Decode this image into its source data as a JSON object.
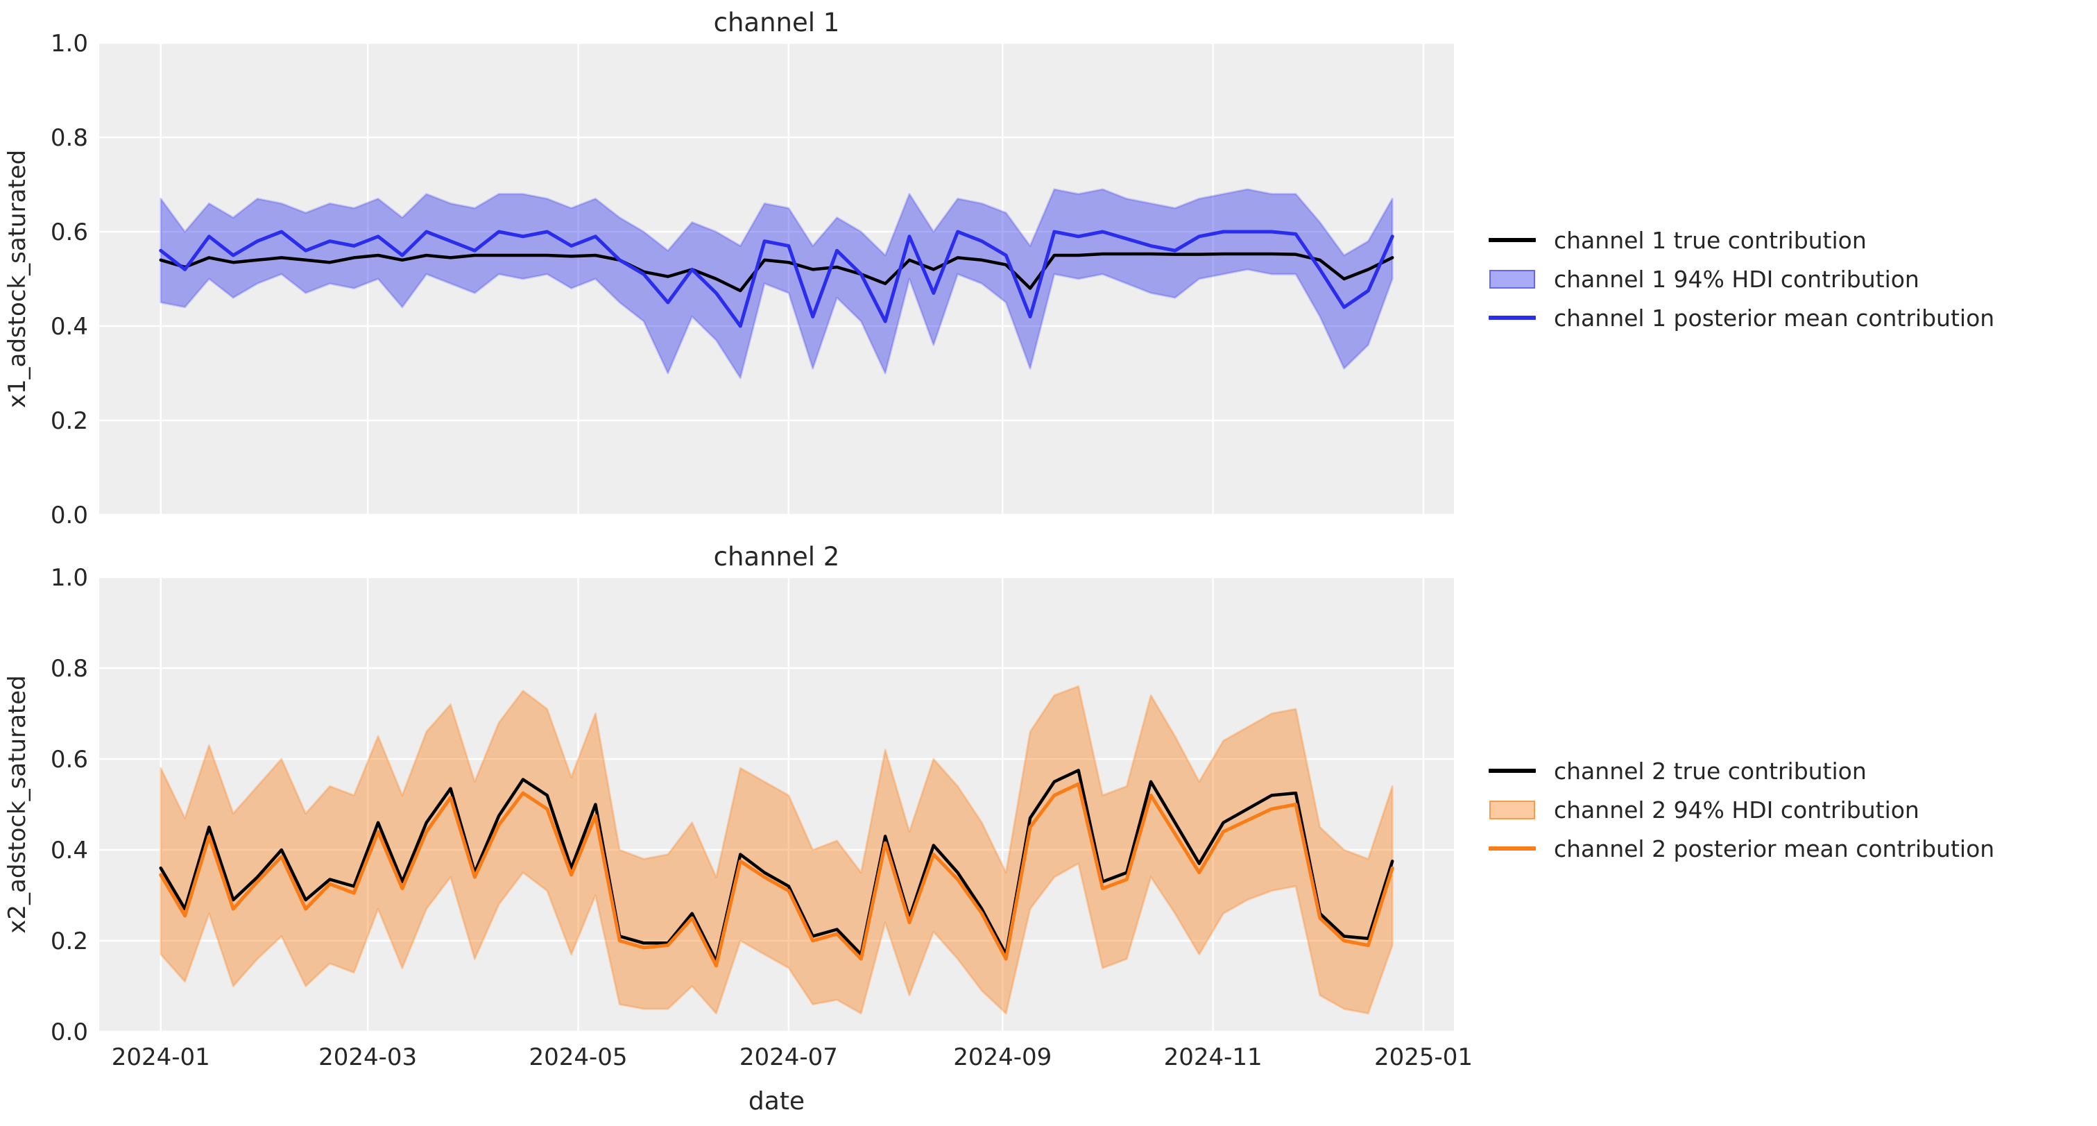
{
  "figure": {
    "background": "#ffffff",
    "plot_background": "#eeeeee",
    "grid_color": "#ffffff",
    "text_color": "#262626",
    "true_line_color": "#000000"
  },
  "chart_data": [
    {
      "type": "line",
      "title": "channel 1",
      "ylabel": "x1_adstock_saturated",
      "ylim": [
        0.0,
        1.0
      ],
      "yticks": [
        "0.0",
        "0.2",
        "0.4",
        "0.6",
        "0.8",
        "1.0"
      ],
      "xticks": [
        {
          "label": "2024-01",
          "day": 0
        },
        {
          "label": "2024-03",
          "day": 60
        },
        {
          "label": "2024-05",
          "day": 121
        },
        {
          "label": "2024-07",
          "day": 182
        },
        {
          "label": "2024-09",
          "day": 244
        },
        {
          "label": "2024-11",
          "day": 305
        },
        {
          "label": "2025-01",
          "day": 366
        }
      ],
      "x_start_date": "2024-01-01",
      "x_interval_days": 7,
      "x_days": [
        0,
        7,
        14,
        21,
        28,
        35,
        42,
        49,
        56,
        63,
        70,
        77,
        84,
        91,
        98,
        105,
        112,
        119,
        126,
        133,
        140,
        147,
        154,
        161,
        168,
        175,
        182,
        189,
        196,
        203,
        210,
        217,
        224,
        231,
        238,
        245,
        252,
        259,
        266,
        273,
        280,
        287,
        294,
        301,
        308,
        315,
        322,
        329,
        336,
        343,
        350,
        357
      ],
      "series": [
        {
          "name": "channel 1 true contribution",
          "color": "#000000",
          "values": [
            0.54,
            0.525,
            0.545,
            0.535,
            0.54,
            0.545,
            0.54,
            0.535,
            0.545,
            0.55,
            0.54,
            0.55,
            0.545,
            0.55,
            0.55,
            0.55,
            0.55,
            0.548,
            0.55,
            0.54,
            0.515,
            0.505,
            0.52,
            0.5,
            0.475,
            0.54,
            0.535,
            0.52,
            0.525,
            0.51,
            0.49,
            0.54,
            0.52,
            0.545,
            0.54,
            0.53,
            0.48,
            0.55,
            0.55,
            0.553,
            0.553,
            0.553,
            0.552,
            0.552,
            0.553,
            0.553,
            0.553,
            0.552,
            0.54,
            0.5,
            0.52,
            0.545
          ]
        },
        {
          "name": "channel 1 posterior mean contribution",
          "color": "#2a2eec",
          "values": [
            0.56,
            0.52,
            0.59,
            0.55,
            0.58,
            0.6,
            0.56,
            0.58,
            0.57,
            0.59,
            0.55,
            0.6,
            0.58,
            0.56,
            0.6,
            0.59,
            0.6,
            0.57,
            0.59,
            0.54,
            0.51,
            0.45,
            0.52,
            0.47,
            0.4,
            0.58,
            0.57,
            0.42,
            0.56,
            0.51,
            0.41,
            0.59,
            0.47,
            0.6,
            0.58,
            0.55,
            0.42,
            0.6,
            0.59,
            0.6,
            0.585,
            0.57,
            0.56,
            0.59,
            0.6,
            0.6,
            0.6,
            0.595,
            0.52,
            0.44,
            0.475,
            0.59
          ]
        }
      ],
      "hdi": {
        "name": "channel 1 94% HDI contribution",
        "fill": "rgba(42,46,236,0.4)",
        "edge": "rgba(42,46,236,0.22)",
        "lower": [
          0.45,
          0.44,
          0.5,
          0.46,
          0.49,
          0.51,
          0.47,
          0.49,
          0.48,
          0.5,
          0.44,
          0.51,
          0.49,
          0.47,
          0.51,
          0.5,
          0.51,
          0.48,
          0.5,
          0.45,
          0.41,
          0.3,
          0.42,
          0.37,
          0.29,
          0.49,
          0.47,
          0.31,
          0.46,
          0.41,
          0.3,
          0.5,
          0.36,
          0.51,
          0.49,
          0.45,
          0.31,
          0.51,
          0.5,
          0.51,
          0.49,
          0.47,
          0.46,
          0.5,
          0.51,
          0.52,
          0.51,
          0.51,
          0.42,
          0.31,
          0.36,
          0.5
        ],
        "upper": [
          0.67,
          0.6,
          0.66,
          0.63,
          0.67,
          0.66,
          0.64,
          0.66,
          0.65,
          0.67,
          0.63,
          0.68,
          0.66,
          0.65,
          0.68,
          0.68,
          0.67,
          0.65,
          0.67,
          0.63,
          0.6,
          0.56,
          0.62,
          0.6,
          0.57,
          0.66,
          0.65,
          0.57,
          0.63,
          0.6,
          0.55,
          0.68,
          0.6,
          0.67,
          0.66,
          0.64,
          0.57,
          0.69,
          0.68,
          0.69,
          0.67,
          0.66,
          0.65,
          0.67,
          0.68,
          0.69,
          0.68,
          0.68,
          0.62,
          0.55,
          0.58,
          0.67
        ]
      },
      "legend": [
        {
          "label": "channel 1 true contribution",
          "type": "line",
          "color": "#000000"
        },
        {
          "label": "channel 1 94% HDI contribution",
          "type": "band",
          "fill": "rgba(42,46,236,0.4)",
          "color": "rgba(42,46,236,0.55)"
        },
        {
          "label": "channel 1 posterior mean contribution",
          "type": "line",
          "color": "#2a2eec"
        }
      ]
    },
    {
      "type": "line",
      "title": "channel 2",
      "ylabel": "x2_adstock_saturated",
      "xlabel": "date",
      "ylim": [
        0.0,
        1.0
      ],
      "yticks": [
        "0.0",
        "0.2",
        "0.4",
        "0.6",
        "0.8",
        "1.0"
      ],
      "xticks": [
        {
          "label": "2024-01",
          "day": 0
        },
        {
          "label": "2024-03",
          "day": 60
        },
        {
          "label": "2024-05",
          "day": 121
        },
        {
          "label": "2024-07",
          "day": 182
        },
        {
          "label": "2024-09",
          "day": 244
        },
        {
          "label": "2024-11",
          "day": 305
        },
        {
          "label": "2025-01",
          "day": 366
        }
      ],
      "x_start_date": "2024-01-01",
      "x_interval_days": 7,
      "x_days": [
        0,
        7,
        14,
        21,
        28,
        35,
        42,
        49,
        56,
        63,
        70,
        77,
        84,
        91,
        98,
        105,
        112,
        119,
        126,
        133,
        140,
        147,
        154,
        161,
        168,
        175,
        182,
        189,
        196,
        203,
        210,
        217,
        224,
        231,
        238,
        245,
        252,
        259,
        266,
        273,
        280,
        287,
        294,
        301,
        308,
        315,
        322,
        329,
        336,
        343,
        350,
        357
      ],
      "series": [
        {
          "name": "channel 2 true contribution",
          "color": "#000000",
          "values": [
            0.36,
            0.27,
            0.45,
            0.29,
            0.34,
            0.4,
            0.29,
            0.335,
            0.32,
            0.46,
            0.33,
            0.46,
            0.535,
            0.35,
            0.475,
            0.555,
            0.52,
            0.36,
            0.5,
            0.21,
            0.195,
            0.195,
            0.26,
            0.155,
            0.39,
            0.35,
            0.32,
            0.21,
            0.225,
            0.17,
            0.43,
            0.25,
            0.41,
            0.35,
            0.27,
            0.17,
            0.47,
            0.55,
            0.575,
            0.33,
            0.35,
            0.55,
            0.46,
            0.37,
            0.46,
            0.49,
            0.52,
            0.525,
            0.26,
            0.21,
            0.205,
            0.375
          ]
        },
        {
          "name": "channel 2 posterior mean contribution",
          "color": "#fa7c17",
          "values": [
            0.345,
            0.255,
            0.43,
            0.27,
            0.33,
            0.385,
            0.27,
            0.325,
            0.305,
            0.44,
            0.315,
            0.44,
            0.515,
            0.34,
            0.455,
            0.525,
            0.49,
            0.345,
            0.475,
            0.2,
            0.185,
            0.19,
            0.25,
            0.145,
            0.375,
            0.34,
            0.31,
            0.2,
            0.215,
            0.16,
            0.415,
            0.24,
            0.39,
            0.335,
            0.26,
            0.16,
            0.45,
            0.52,
            0.545,
            0.315,
            0.335,
            0.52,
            0.435,
            0.35,
            0.44,
            0.465,
            0.49,
            0.5,
            0.25,
            0.2,
            0.19,
            0.36
          ]
        }
      ],
      "hdi": {
        "name": "channel 2 94% HDI contribution",
        "fill": "rgba(250,124,23,0.4)",
        "edge": "rgba(250,124,23,0.28)",
        "lower": [
          0.17,
          0.11,
          0.26,
          0.1,
          0.16,
          0.21,
          0.1,
          0.15,
          0.13,
          0.27,
          0.14,
          0.27,
          0.34,
          0.16,
          0.28,
          0.35,
          0.31,
          0.17,
          0.3,
          0.06,
          0.05,
          0.05,
          0.1,
          0.04,
          0.2,
          0.17,
          0.14,
          0.06,
          0.07,
          0.04,
          0.24,
          0.08,
          0.22,
          0.16,
          0.09,
          0.04,
          0.27,
          0.34,
          0.37,
          0.14,
          0.16,
          0.34,
          0.26,
          0.17,
          0.26,
          0.29,
          0.31,
          0.32,
          0.08,
          0.05,
          0.04,
          0.19
        ],
        "upper": [
          0.58,
          0.47,
          0.63,
          0.48,
          0.54,
          0.6,
          0.48,
          0.54,
          0.52,
          0.65,
          0.52,
          0.66,
          0.72,
          0.55,
          0.68,
          0.75,
          0.71,
          0.56,
          0.7,
          0.4,
          0.38,
          0.39,
          0.46,
          0.34,
          0.58,
          0.55,
          0.52,
          0.4,
          0.42,
          0.35,
          0.62,
          0.44,
          0.6,
          0.54,
          0.46,
          0.35,
          0.66,
          0.74,
          0.76,
          0.52,
          0.54,
          0.74,
          0.65,
          0.55,
          0.64,
          0.67,
          0.7,
          0.71,
          0.45,
          0.4,
          0.38,
          0.54
        ]
      },
      "legend": [
        {
          "label": "channel 2 true contribution",
          "type": "line",
          "color": "#000000"
        },
        {
          "label": "channel 2 94% HDI contribution",
          "type": "band",
          "fill": "rgba(250,124,23,0.4)",
          "color": "rgba(250,124,23,0.6)"
        },
        {
          "label": "channel 2 posterior mean contribution",
          "type": "line",
          "color": "#fa7c17"
        }
      ]
    }
  ]
}
